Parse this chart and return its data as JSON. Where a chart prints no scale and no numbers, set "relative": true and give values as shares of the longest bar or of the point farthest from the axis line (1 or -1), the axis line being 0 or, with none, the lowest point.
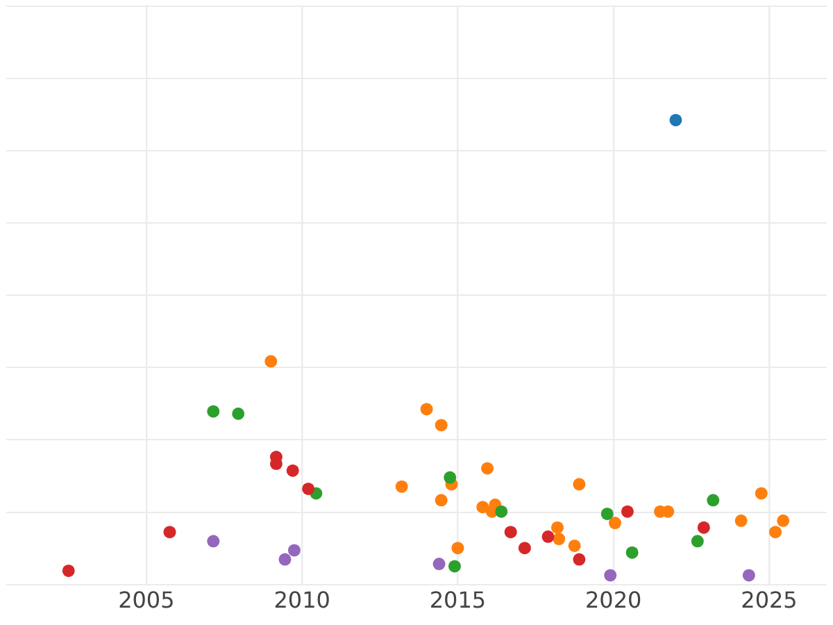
{
  "chart_data": {
    "type": "scatter",
    "relative": true,
    "grid": true,
    "legend": false,
    "marker": "circle",
    "xlim": [
      2000.5,
      2026.85
    ],
    "xticks": [
      2005,
      2010,
      2015,
      2020,
      2025
    ],
    "series": [
      {
        "color": "#d62728",
        "x": [
          2002.5,
          2005.75,
          2009.17,
          2009.17,
          2009.7,
          2010.2,
          2016.7,
          2017.15,
          2017.9,
          2018.9,
          2020.45,
          2022.9
        ],
        "values": [
          0.01,
          0.095,
          0.26,
          0.245,
          0.23,
          0.19,
          0.095,
          0.06,
          0.085,
          0.035,
          0.14,
          0.105
        ]
      },
      {
        "color": "#2ca02c",
        "x": [
          2007.15,
          2007.95,
          2010.45,
          2014.75,
          2014.9,
          2016.4,
          2019.8,
          2020.6,
          2022.7,
          2023.2
        ],
        "values": [
          0.36,
          0.355,
          0.18,
          0.215,
          0.02,
          0.14,
          0.135,
          0.05,
          0.075,
          0.165
        ]
      },
      {
        "color": "#ff7f0e",
        "x": [
          2009.0,
          2013.2,
          2014.0,
          2014.47,
          2014.47,
          2014.8,
          2015.0,
          2015.95,
          2015.8,
          2016.1,
          2016.2,
          2018.25,
          2018.2,
          2018.75,
          2018.9,
          2020.05,
          2021.5,
          2021.75,
          2024.1,
          2024.75,
          2025.2,
          2025.45
        ],
        "values": [
          0.47,
          0.195,
          0.365,
          0.33,
          0.165,
          0.2,
          0.06,
          0.235,
          0.15,
          0.14,
          0.155,
          0.08,
          0.105,
          0.065,
          0.2,
          0.115,
          0.14,
          0.14,
          0.12,
          0.18,
          0.095,
          0.12
        ]
      },
      {
        "color": "#9467bd",
        "x": [
          2007.15,
          2009.45,
          2009.75,
          2014.4,
          2019.9,
          2024.35
        ],
        "values": [
          0.075,
          0.035,
          0.055,
          0.025,
          0,
          0
        ]
      },
      {
        "color": "#1f77b4",
        "x": [
          2022.0
        ],
        "values": [
          1
        ]
      }
    ]
  }
}
